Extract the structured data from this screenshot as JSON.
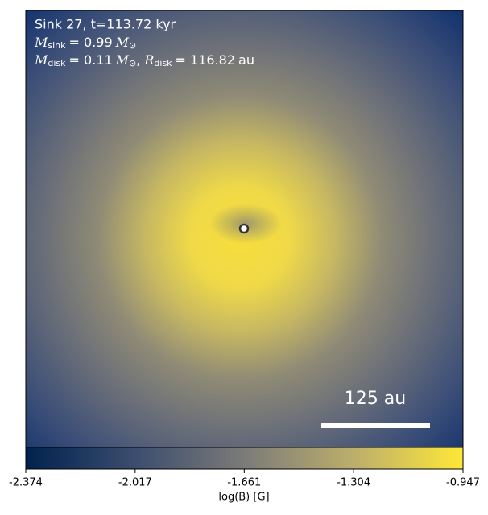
{
  "chart_data": {
    "type": "image",
    "sink_label": "Sink 27, t=113.72 kyr",
    "m_sink": {
      "symbol": "M",
      "sub": "sink",
      "value": "= 0.99",
      "unit_symbol": "M",
      "unit_sub": "⊙"
    },
    "m_disk": {
      "symbol": "M",
      "sub": "disk",
      "value": "= 0.11",
      "unit_symbol": "M",
      "unit_sub": "⊙",
      "separator": ","
    },
    "r_disk": {
      "symbol": "R",
      "sub": "disk",
      "value": "= 116.82",
      "unit": "au"
    },
    "scale_bar_label": "125 au",
    "colorbar": {
      "label": "log(B) [G]",
      "clim": [
        -2.374,
        -0.947
      ],
      "ticks": [
        -2.374,
        -2.017,
        -1.661,
        -1.304,
        -0.947
      ]
    }
  }
}
